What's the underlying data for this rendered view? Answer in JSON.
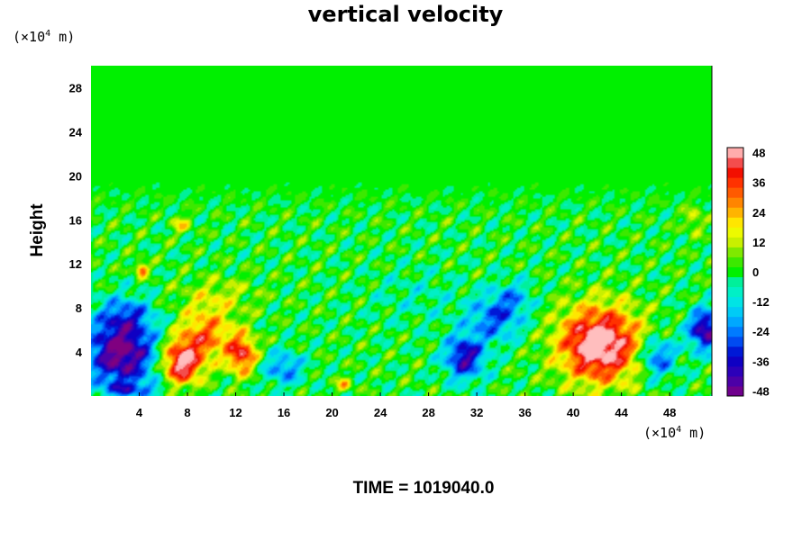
{
  "chart_data": {
    "type": "heatmap",
    "title": "vertical velocity",
    "ylabel": "Height",
    "xlabel": "",
    "x_unit": {
      "prefix": "(×10",
      "exp": "4",
      "suffix": " m)"
    },
    "y_unit": {
      "prefix": "(×10",
      "exp": "4",
      "suffix": " m)"
    },
    "xlim": [
      0,
      51.5
    ],
    "ylim": [
      0,
      30
    ],
    "x_ticks": [
      4,
      8,
      12,
      16,
      20,
      24,
      28,
      32,
      36,
      40,
      44,
      48
    ],
    "y_ticks": [
      4,
      8,
      12,
      16,
      20,
      24,
      28
    ],
    "colorbar": {
      "range": [
        -50,
        50
      ],
      "ticks": [
        48,
        36,
        24,
        12,
        0,
        -12,
        -24,
        -36,
        -48
      ],
      "colors": [
        {
          "v": -50,
          "c": "#800080"
        },
        {
          "v": -42,
          "c": "#3a00b4"
        },
        {
          "v": -34,
          "c": "#0000c8"
        },
        {
          "v": -26,
          "c": "#0064ff"
        },
        {
          "v": -18,
          "c": "#00beff"
        },
        {
          "v": -10,
          "c": "#00f0dc"
        },
        {
          "v": -4,
          "c": "#00f09a"
        },
        {
          "v": 0,
          "c": "#00f000"
        },
        {
          "v": 6,
          "c": "#5ae600"
        },
        {
          "v": 12,
          "c": "#c8f000"
        },
        {
          "v": 18,
          "c": "#ffff00"
        },
        {
          "v": 24,
          "c": "#ffb400"
        },
        {
          "v": 30,
          "c": "#ff6e00"
        },
        {
          "v": 38,
          "c": "#ff1e00"
        },
        {
          "v": 42,
          "c": "#e60000"
        },
        {
          "v": 46,
          "c": "#ff9a9a"
        },
        {
          "v": 50,
          "c": "#ffbebe"
        }
      ]
    },
    "features": [
      {
        "x": 2.5,
        "y": 4.0,
        "sx": 2.8,
        "sy": 3.3,
        "v": -52
      },
      {
        "x": 3.0,
        "y": 7.5,
        "sx": 2.2,
        "sy": 1.5,
        "v": -16
      },
      {
        "x": 7.5,
        "y": 3.0,
        "sx": 1.6,
        "sy": 2.0,
        "v": 50
      },
      {
        "x": 9.5,
        "y": 5.5,
        "sx": 2.2,
        "sy": 2.3,
        "v": 30
      },
      {
        "x": 12.5,
        "y": 3.8,
        "sx": 1.2,
        "sy": 1.8,
        "v": 40
      },
      {
        "x": 10.5,
        "y": 9.0,
        "sx": 3.2,
        "sy": 1.8,
        "v": 12
      },
      {
        "x": 16.0,
        "y": 2.5,
        "sx": 1.6,
        "sy": 1.5,
        "v": -24
      },
      {
        "x": 21.0,
        "y": 1.0,
        "sx": 0.6,
        "sy": 0.6,
        "v": 22
      },
      {
        "x": 31.0,
        "y": 3.5,
        "sx": 1.6,
        "sy": 2.0,
        "v": -40
      },
      {
        "x": 33.5,
        "y": 7.0,
        "sx": 2.2,
        "sy": 2.0,
        "v": -26
      },
      {
        "x": 35.0,
        "y": 9.0,
        "sx": 1.6,
        "sy": 1.5,
        "v": -16
      },
      {
        "x": 42.2,
        "y": 4.7,
        "sx": 3.3,
        "sy": 3.4,
        "v": 58
      },
      {
        "x": 47.0,
        "y": 3.5,
        "sx": 1.5,
        "sy": 1.8,
        "v": -30
      },
      {
        "x": 51.0,
        "y": 6.0,
        "sx": 1.4,
        "sy": 1.8,
        "v": -46
      },
      {
        "x": 3.5,
        "y": 0.6,
        "sx": 2.5,
        "sy": 0.6,
        "v": -18
      },
      {
        "x": 27.0,
        "y": 9.0,
        "sx": 4.0,
        "sy": 2.5,
        "v": -6
      },
      {
        "x": 7.5,
        "y": 15.5,
        "sx": 0.8,
        "sy": 0.8,
        "v": 16
      },
      {
        "x": 4.2,
        "y": 11.5,
        "sx": 0.5,
        "sy": 0.6,
        "v": 36
      },
      {
        "x": 50.0,
        "y": 16.0,
        "sx": 0.8,
        "sy": 1.2,
        "v": 14
      }
    ],
    "noise_band": [
      0,
      20
    ]
  },
  "footer": {
    "time_text": "TIME = 1019040.0"
  }
}
